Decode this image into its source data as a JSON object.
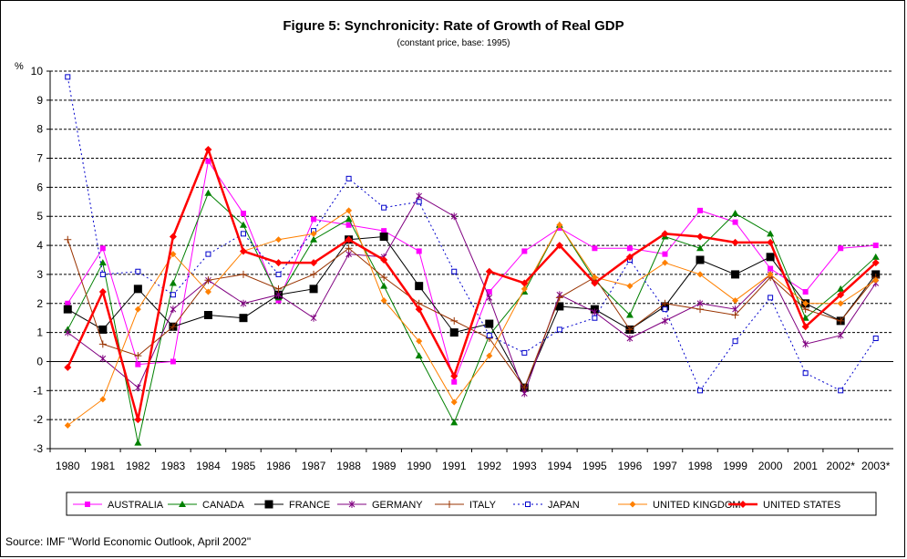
{
  "chart_data": {
    "type": "line",
    "title": "Figure 5: Synchronicity: Rate of Growth of Real GDP",
    "subtitle": "(constant price, base: 1995)",
    "ylabel": "%",
    "xlabel": "",
    "ylim": [
      -3,
      10
    ],
    "yticks": [
      -3,
      -2,
      -1,
      0,
      1,
      2,
      3,
      4,
      5,
      6,
      7,
      8,
      9,
      10
    ],
    "grid": "horizontal dashed",
    "legend_position": "bottom",
    "categories": [
      "1980",
      "1981",
      "1982",
      "1983",
      "1984",
      "1985",
      "1986",
      "1987",
      "1988",
      "1989",
      "1990",
      "1991",
      "1992",
      "1993",
      "1994",
      "1995",
      "1996",
      "1997",
      "1998",
      "1999",
      "2000",
      "2001",
      "2002*",
      "2003*"
    ],
    "series": [
      {
        "name": "AUSTRALIA",
        "color": "#ff00ff",
        "marker": "square",
        "values": [
          2.0,
          3.9,
          -0.1,
          0.0,
          6.9,
          5.1,
          2.1,
          4.9,
          4.7,
          4.5,
          3.8,
          -0.7,
          2.4,
          3.8,
          4.6,
          3.9,
          3.9,
          3.7,
          5.2,
          4.8,
          3.2,
          2.4,
          3.9,
          4.0
        ]
      },
      {
        "name": "CANADA",
        "color": "#008000",
        "marker": "triangle",
        "values": [
          1.1,
          3.4,
          -2.8,
          2.7,
          5.8,
          4.7,
          2.2,
          4.2,
          4.9,
          2.6,
          0.2,
          -2.1,
          0.9,
          2.4,
          4.7,
          2.8,
          1.6,
          4.3,
          3.9,
          5.1,
          4.4,
          1.5,
          2.5,
          3.6
        ]
      },
      {
        "name": "FRANCE",
        "color": "#000000",
        "marker": "bigsquare",
        "values": [
          1.8,
          1.1,
          2.5,
          1.2,
          1.6,
          1.5,
          2.3,
          2.5,
          4.2,
          4.3,
          2.6,
          1.0,
          1.3,
          -0.9,
          1.9,
          1.8,
          1.1,
          1.9,
          3.5,
          3.0,
          3.6,
          2.0,
          1.4,
          3.0
        ]
      },
      {
        "name": "GERMANY",
        "color": "#800080",
        "marker": "star",
        "values": [
          1.0,
          0.1,
          -0.9,
          1.8,
          2.8,
          2.0,
          2.3,
          1.5,
          3.7,
          3.6,
          5.7,
          5.0,
          2.2,
          -1.1,
          2.3,
          1.7,
          0.8,
          1.4,
          2.0,
          1.8,
          3.0,
          0.6,
          0.9,
          2.7
        ]
      },
      {
        "name": "ITALY",
        "color": "#993300",
        "marker": "plus",
        "values": [
          4.2,
          0.6,
          0.2,
          1.2,
          2.8,
          3.0,
          2.5,
          3.0,
          3.9,
          2.9,
          2.0,
          1.4,
          0.8,
          -0.9,
          2.2,
          2.9,
          1.1,
          2.0,
          1.8,
          1.6,
          2.9,
          1.8,
          1.4,
          2.9
        ]
      },
      {
        "name": "JAPAN",
        "color": "#0000cc",
        "marker": "hollowsquare",
        "dashed": true,
        "values": [
          9.8,
          3.0,
          3.1,
          2.3,
          3.7,
          4.4,
          3.0,
          4.5,
          6.3,
          5.3,
          5.5,
          3.1,
          0.9,
          0.3,
          1.1,
          1.5,
          3.5,
          1.8,
          -1.0,
          0.7,
          2.2,
          -0.4,
          -1.0,
          0.8
        ]
      },
      {
        "name": "UNITED KINGDOM",
        "color": "#ff8000",
        "marker": "diamond",
        "values": [
          -2.2,
          -1.3,
          1.8,
          3.7,
          2.4,
          3.8,
          4.2,
          4.4,
          5.2,
          2.1,
          0.7,
          -1.4,
          0.2,
          2.5,
          4.7,
          2.9,
          2.6,
          3.4,
          3.0,
          2.1,
          3.0,
          2.0,
          2.0,
          2.8
        ]
      },
      {
        "name": "UNITED STATES",
        "color": "#ff0000",
        "marker": "diamond",
        "thick": true,
        "values": [
          -0.2,
          2.4,
          -2.0,
          4.3,
          7.3,
          3.8,
          3.4,
          3.4,
          4.2,
          3.5,
          1.8,
          -0.5,
          3.1,
          2.7,
          4.0,
          2.7,
          3.6,
          4.4,
          4.3,
          4.1,
          4.1,
          1.2,
          2.3,
          3.4
        ]
      }
    ]
  },
  "source": "Source: IMF \"World Economic Outlook, April 2002\""
}
